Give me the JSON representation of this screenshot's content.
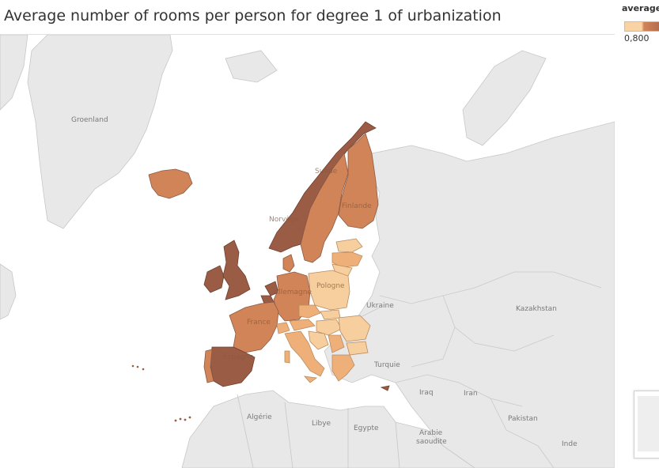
{
  "title": "Average number of rooms per person for degree 1 of urbanization",
  "legend": {
    "title": "average",
    "min_label": "0,800",
    "color_low": "#f9d3a4",
    "color_high": "#9a5a44"
  },
  "colors": {
    "ocean": "#ffffff",
    "land": "#e9e9e9",
    "border": "#c7c7c7",
    "very_light": "#f7cf9e",
    "light": "#eeb078",
    "mid": "#d18457",
    "dark": "#9b5c46"
  },
  "map_labels": {
    "groenland": "Groenland",
    "ukraine": "Ukraine",
    "kazakhstan": "Kazakhstan",
    "turquie": "Turquie",
    "iraq": "Iraq",
    "iran": "Iran",
    "algerie": "Algérie",
    "libye": "Libye",
    "egypte": "Egypte",
    "arabie": "Arabie",
    "saoudite": "saoudite",
    "pakistan": "Pakistan",
    "inde": "Inde"
  },
  "country_labels": {
    "suede": "Suède",
    "finlande": "Finlande",
    "norvege": "Norvège",
    "allemagne": "Allemagne",
    "pologne": "Pologne",
    "france": "France",
    "espagne": "Espagne"
  }
}
